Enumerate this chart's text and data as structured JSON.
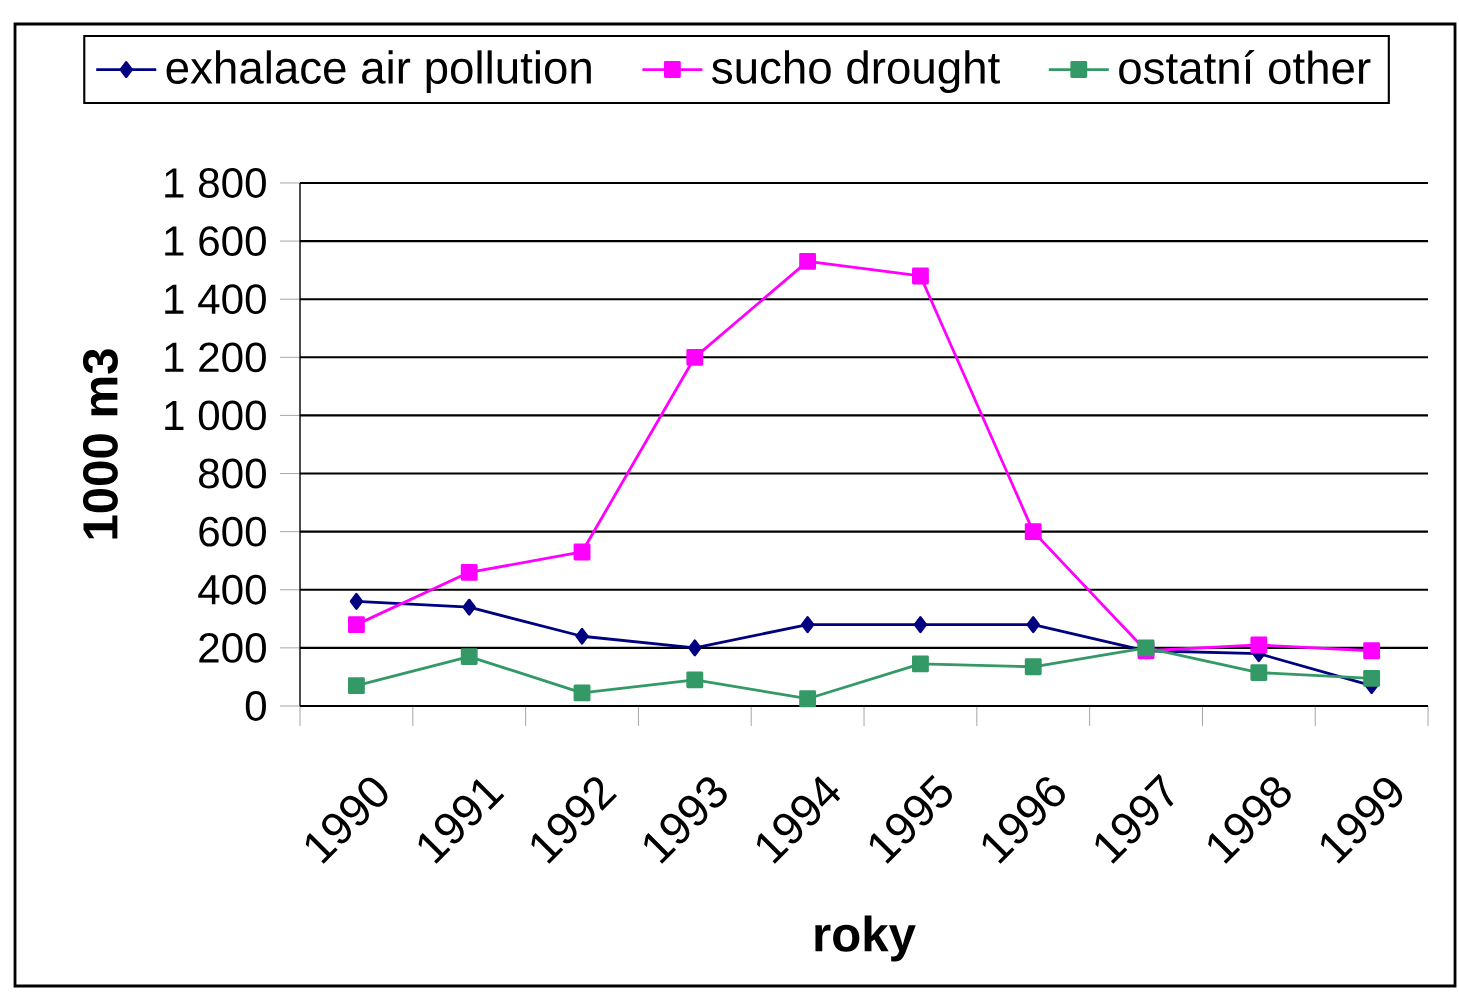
{
  "chart_data": {
    "type": "line",
    "xlabel": "roky",
    "ylabel": "1000 m3",
    "categories": [
      "1990",
      "1991",
      "1992",
      "1993",
      "1994",
      "1995",
      "1996",
      "1997",
      "1998",
      "1999"
    ],
    "series": [
      {
        "name": "exhalace  air pollution",
        "color": "#000080",
        "marker": "diamond",
        "values": [
          360,
          340,
          240,
          200,
          280,
          280,
          280,
          190,
          180,
          70
        ]
      },
      {
        "name": "sucho   drought",
        "color": "#ff00ff",
        "marker": "square",
        "values": [
          280,
          460,
          530,
          1200,
          1530,
          1480,
          600,
          190,
          210,
          190
        ]
      },
      {
        "name": "ostatní  other",
        "color": "#339966",
        "marker": "square",
        "values": [
          70,
          170,
          45,
          90,
          25,
          145,
          135,
          200,
          115,
          95
        ]
      }
    ],
    "ylim": [
      0,
      1800
    ],
    "yticks": [
      0,
      200,
      400,
      600,
      800,
      {
        "value": 1000,
        "label": "1 000"
      },
      {
        "value": 1200,
        "label": "1 200"
      },
      {
        "value": 1400,
        "label": "1 400"
      },
      {
        "value": 1600,
        "label": "1 600"
      },
      {
        "value": 1800,
        "label": "1 800"
      }
    ],
    "grid": "y",
    "legend": "top",
    "line_style": "solid"
  }
}
